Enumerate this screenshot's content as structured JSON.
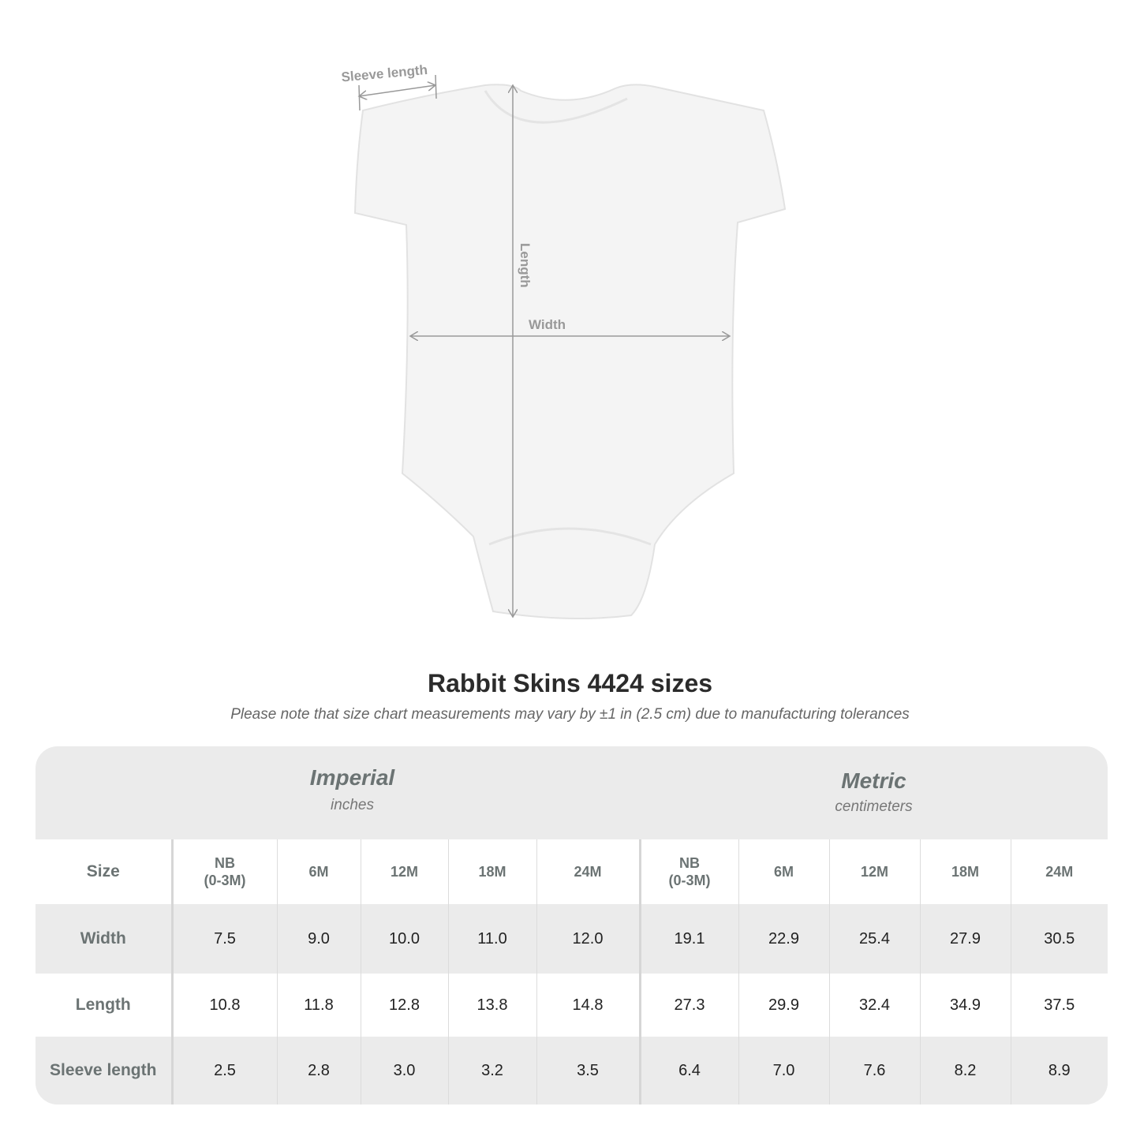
{
  "diagram": {
    "labels": {
      "sleeve": "Sleeve length",
      "length": "Length",
      "width": "Width"
    },
    "garment_color": "#f4f4f4",
    "arrow_color": "#999999"
  },
  "title": "Rabbit Skins 4424 sizes",
  "note": "Please note that size chart measurements may vary by ±1 in (2.5 cm) due to manufacturing tolerances",
  "table": {
    "imperial": {
      "title": "Imperial",
      "unit": "inches"
    },
    "metric": {
      "title": "Metric",
      "unit": "centimeters"
    },
    "size_label": "Size",
    "sizes": [
      [
        "NB",
        "(0-3M)"
      ],
      [
        "6M"
      ],
      [
        "12M"
      ],
      [
        "18M"
      ],
      [
        "24M"
      ]
    ],
    "rows": [
      {
        "label": "Width",
        "imperial": [
          "7.5",
          "9.0",
          "10.0",
          "11.0",
          "12.0"
        ],
        "metric": [
          "19.1",
          "22.9",
          "25.4",
          "27.9",
          "30.5"
        ]
      },
      {
        "label": "Length",
        "imperial": [
          "10.8",
          "11.8",
          "12.8",
          "13.8",
          "14.8"
        ],
        "metric": [
          "27.3",
          "29.9",
          "32.4",
          "34.9",
          "37.5"
        ]
      },
      {
        "label": "Sleeve length",
        "imperial": [
          "2.5",
          "2.8",
          "3.0",
          "3.2",
          "3.5"
        ],
        "metric": [
          "6.4",
          "7.0",
          "7.6",
          "8.2",
          "8.9"
        ]
      }
    ]
  }
}
